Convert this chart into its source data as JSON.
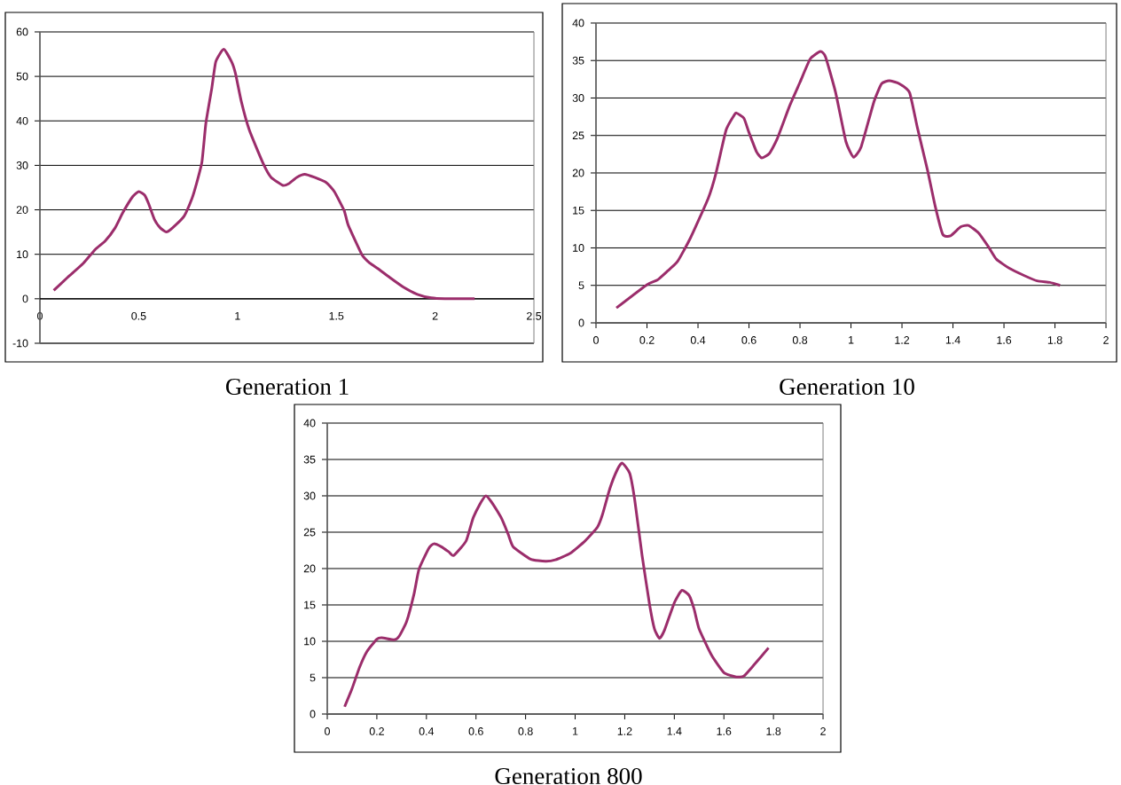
{
  "chart_data": [
    {
      "type": "line",
      "title": "Generation 1",
      "color": "#9b2d6b",
      "grid": "y",
      "xlim": [
        0,
        2.5
      ],
      "ylim": [
        -10,
        60
      ],
      "xticks": [
        0,
        0.5,
        1,
        1.5,
        2,
        2.5
      ],
      "yticks": [
        -10,
        0,
        10,
        20,
        30,
        40,
        50,
        60
      ],
      "x": [
        0.07,
        0.14,
        0.22,
        0.28,
        0.33,
        0.38,
        0.42,
        0.47,
        0.5,
        0.53,
        0.55,
        0.58,
        0.61,
        0.64,
        0.67,
        0.73,
        0.77,
        0.79,
        0.82,
        0.84,
        0.87,
        0.89,
        0.93,
        0.97,
        0.99,
        1.02,
        1.06,
        1.13,
        1.17,
        1.23,
        1.26,
        1.3,
        1.34,
        1.39,
        1.45,
        1.49,
        1.54,
        1.56,
        1.63,
        1.67,
        1.71,
        1.77,
        1.84,
        1.91,
        1.98,
        2.05,
        2.2
      ],
      "values": [
        1.9,
        4.8,
        8.0,
        11.1,
        13,
        15.9,
        19.4,
        23,
        24.1,
        23.3,
        21.4,
        17.8,
        15.9,
        15,
        15.9,
        18.6,
        22.6,
        25.5,
        30.8,
        39.5,
        47.4,
        53.3,
        56.1,
        53.3,
        50.6,
        44.2,
        37.9,
        30.4,
        27.3,
        25.5,
        25.9,
        27.3,
        28,
        27.3,
        26.1,
        24.1,
        19.8,
        16.6,
        9.9,
        8,
        6.8,
        4.8,
        2.6,
        1.0,
        0.2,
        0,
        0
      ]
    },
    {
      "type": "line",
      "title": "Generation 10",
      "color": "#9b2d6b",
      "grid": "y",
      "xlim": [
        0,
        2
      ],
      "ylim": [
        0,
        40
      ],
      "xticks": [
        0,
        0.2,
        0.4,
        0.6,
        0.8,
        1,
        1.2,
        1.4,
        1.6,
        1.8,
        2
      ],
      "yticks": [
        0,
        5,
        10,
        15,
        20,
        25,
        30,
        35,
        40
      ],
      "x": [
        0.08,
        0.2,
        0.24,
        0.28,
        0.32,
        0.37,
        0.44,
        0.47,
        0.51,
        0.54,
        0.55,
        0.58,
        0.6,
        0.63,
        0.65,
        0.68,
        0.71,
        0.76,
        0.8,
        0.84,
        0.88,
        0.9,
        0.94,
        0.98,
        1.01,
        1.04,
        1.09,
        1.12,
        1.15,
        1.19,
        1.23,
        1.26,
        1.3,
        1.33,
        1.36,
        1.39,
        1.43,
        1.46,
        1.5,
        1.54,
        1.57,
        1.62,
        1.68,
        1.73,
        1.78,
        1.82
      ],
      "values": [
        2.0,
        5.1,
        5.7,
        6.9,
        8.2,
        11.3,
        16.6,
        19.9,
        25.7,
        27.6,
        28,
        27.3,
        25.4,
        22.8,
        22,
        22.6,
        24.5,
        29,
        32.1,
        35.2,
        36.2,
        35.5,
        30.7,
        24.2,
        22.1,
        23.5,
        29.5,
        31.9,
        32.3,
        31.9,
        30.7,
        26.1,
        20.4,
        15.6,
        11.8,
        11.6,
        12.8,
        13,
        12,
        10.1,
        8.5,
        7.3,
        6.3,
        5.6,
        5.4,
        5
      ]
    },
    {
      "type": "line",
      "title": "Generation 800",
      "color": "#9b2d6b",
      "grid": "y",
      "xlim": [
        0,
        2
      ],
      "ylim": [
        0,
        40
      ],
      "xticks": [
        0,
        0.2,
        0.4,
        0.6,
        0.8,
        1,
        1.2,
        1.4,
        1.6,
        1.8,
        2
      ],
      "yticks": [
        0,
        5,
        10,
        15,
        20,
        25,
        30,
        35,
        40
      ],
      "x": [
        0.07,
        0.1,
        0.13,
        0.16,
        0.2,
        0.22,
        0.27,
        0.29,
        0.32,
        0.35,
        0.37,
        0.41,
        0.43,
        0.46,
        0.49,
        0.51,
        0.56,
        0.59,
        0.64,
        0.7,
        0.73,
        0.75,
        0.82,
        0.88,
        0.92,
        0.98,
        1.04,
        1.09,
        1.11,
        1.14,
        1.17,
        1.19,
        1.22,
        1.24,
        1.27,
        1.3,
        1.32,
        1.34,
        1.36,
        1.4,
        1.43,
        1.46,
        1.48,
        1.5,
        1.55,
        1.6,
        1.65,
        1.68,
        1.72,
        1.78
      ],
      "values": [
        1.0,
        3.5,
        6.4,
        8.6,
        10.3,
        10.5,
        10.2,
        10.7,
        12.7,
        16.5,
        19.9,
        22.8,
        23.4,
        23,
        22.3,
        21.8,
        23.8,
        27.1,
        30,
        27.1,
        24.7,
        23,
        21.3,
        21,
        21.2,
        22.1,
        23.8,
        25.7,
        27.4,
        31,
        33.6,
        34.5,
        33.1,
        29.5,
        21.8,
        15.1,
        11.7,
        10.4,
        11.5,
        15.3,
        17,
        16.3,
        14.4,
        11.7,
        8.1,
        5.7,
        5.1,
        5.2,
        6.7,
        9.1
      ]
    }
  ]
}
